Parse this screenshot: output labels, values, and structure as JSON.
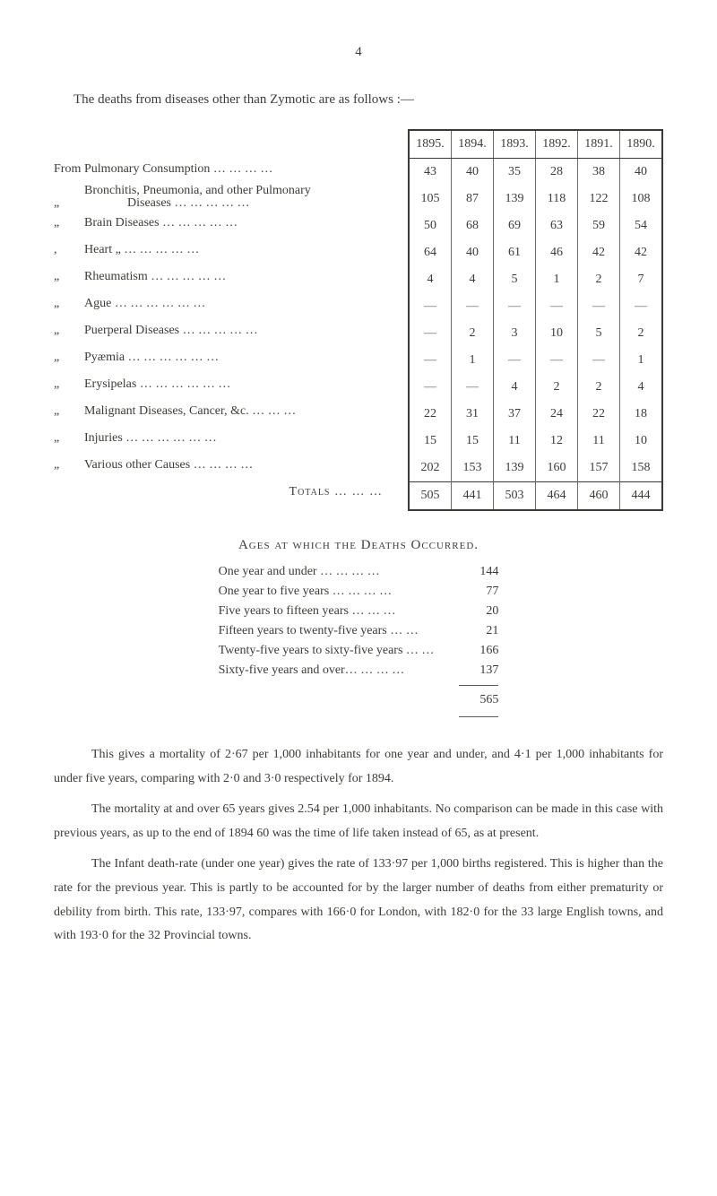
{
  "page_number": "4",
  "lead_sentence": "The deaths from diseases other than Zymotic are as follows :—",
  "years": [
    "1895.",
    "1894.",
    "1893.",
    "1892.",
    "1891.",
    "1890."
  ],
  "rows": [
    {
      "label_prefix": "From",
      "label": "Pulmonary Consumption …    …    …    …",
      "values": [
        "43",
        "40",
        "35",
        "28",
        "38",
        "40"
      ]
    },
    {
      "label_prefix": "„",
      "label": "Bronchitis, Pneumonia, and other Pulmonary",
      "label2": "Diseases        …    …    …    …    …",
      "values": [
        "105",
        "87",
        "139",
        "118",
        "122",
        "108"
      ]
    },
    {
      "label_prefix": "„",
      "label": "Brain Diseases    …    …    …    …    …",
      "values": [
        "50",
        "68",
        "69",
        "63",
        "59",
        "54"
      ]
    },
    {
      "label_prefix": ",",
      "label": "Heart    „           …    …    …    …    …",
      "values": [
        "64",
        "40",
        "61",
        "46",
        "42",
        "42"
      ]
    },
    {
      "label_prefix": "„",
      "label": "Rheumatism       …    …    …    …    …",
      "values": [
        "4",
        "4",
        "5",
        "1",
        "2",
        "7"
      ]
    },
    {
      "label_prefix": "„",
      "label": "Ague     …    …    …    …    …    …",
      "values": [
        "—",
        "—",
        "—",
        "—",
        "—",
        "—"
      ]
    },
    {
      "label_prefix": "„",
      "label": "Puerperal Diseases …    …    …    …    …",
      "values": [
        "—",
        "2",
        "3",
        "10",
        "5",
        "2"
      ]
    },
    {
      "label_prefix": "„",
      "label": "Pyæmia   …    …    …    …    …    …",
      "values": [
        "—",
        "1",
        "—",
        "—",
        "—",
        "1"
      ]
    },
    {
      "label_prefix": "„",
      "label": "Erysipelas …   …    …    …    …    …",
      "values": [
        "—",
        "—",
        "4",
        "2",
        "2",
        "4"
      ]
    },
    {
      "label_prefix": "„",
      "label": "Malignant Diseases, Cancer, &c. …   …   …",
      "values": [
        "22",
        "31",
        "37",
        "24",
        "22",
        "18"
      ]
    },
    {
      "label_prefix": "„",
      "label": "Injuries    …    …    …    …    …    …",
      "values": [
        "15",
        "15",
        "11",
        "12",
        "11",
        "10"
      ]
    },
    {
      "label_prefix": "„",
      "label": "Various other Causes    …    …    …    …",
      "values": [
        "202",
        "153",
        "139",
        "160",
        "157",
        "158"
      ]
    }
  ],
  "totals_label": "Totals    …    …    …",
  "totals": [
    "505",
    "441",
    "503",
    "464",
    "460",
    "444"
  ],
  "ages_heading": "Ages at which the Deaths Occurred.",
  "ages": [
    {
      "label": "One year and under        …    …    …    …",
      "value": "144"
    },
    {
      "label": "One year to five years     …    …    …    …",
      "value": "77"
    },
    {
      "label": "Five years to fifteen years        …    …    …",
      "value": "20"
    },
    {
      "label": "Fifteen years to twenty-five years    …    …",
      "value": "21"
    },
    {
      "label": "Twenty-five years to sixty-five years   …   …",
      "value": "166"
    },
    {
      "label": "Sixty-five years and over…    …    …    …",
      "value": "137"
    }
  ],
  "ages_total": "565",
  "paragraphs": [
    "This gives a mortality of 2·67 per 1,000 inhabitants for one year and under, and 4·1 per 1,000 inhabitants for under five years, comparing with 2·0 and 3·0 respectively for 1894.",
    "The mortality at and over 65 years gives 2.54 per 1,000 inhabitants.  No comparison can be made in this case with previous years, as up to the end of 1894 60 was the time of life taken instead of 65, as at present.",
    "The Infant death-rate (under one year) gives the rate of 133·97 per 1,000 births registered. This is higher than the rate for the previous year.  This is partly to be accounted for by the larger number of deaths from either prematurity or debility from birth.  This rate, 133·97, compares with 166·0 for London, with 182·0 for the 33 large English towns, and with 193·0 for the 32 Provincial towns."
  ]
}
